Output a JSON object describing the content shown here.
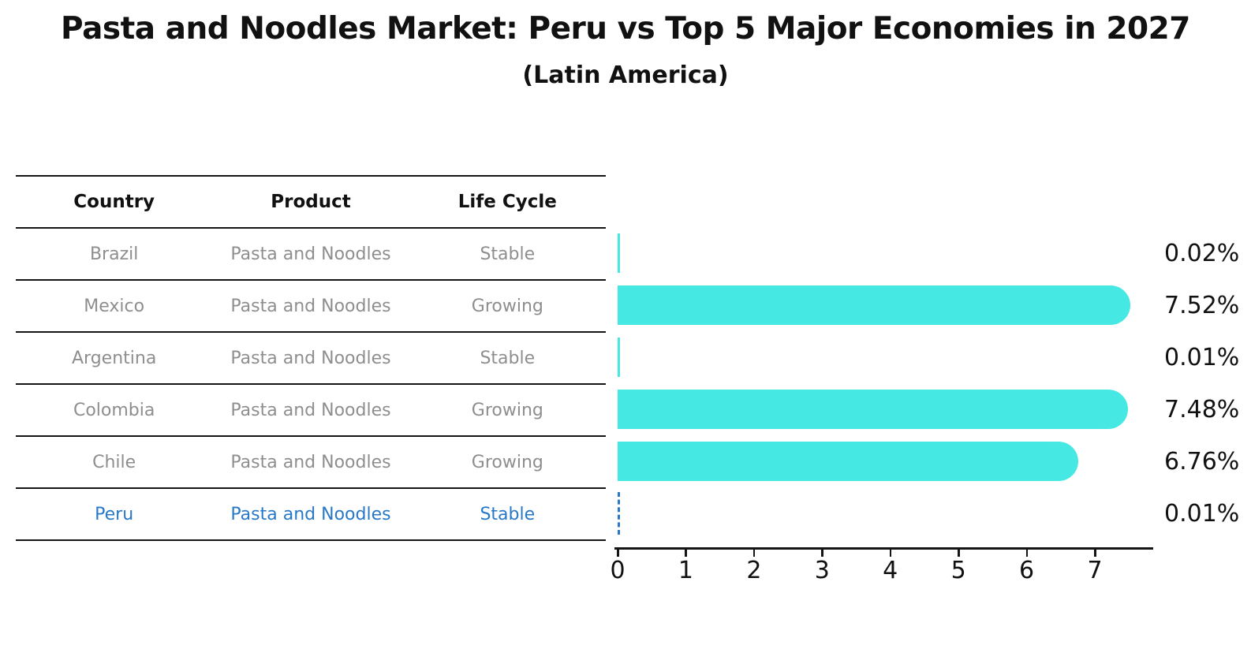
{
  "title": "Pasta and Noodles Market: Peru vs Top 5 Major Economies in 2027",
  "subtitle": "(Latin America)",
  "table": {
    "headers": [
      "Country",
      "Product",
      "Life Cycle"
    ],
    "rows": [
      {
        "country": "Brazil",
        "product": "Pasta and Noodles",
        "life_cycle": "Stable",
        "highlighted": false
      },
      {
        "country": "Mexico",
        "product": "Pasta and Noodles",
        "life_cycle": "Growing",
        "highlighted": false
      },
      {
        "country": "Argentina",
        "product": "Pasta and Noodles",
        "life_cycle": "Stable",
        "highlighted": false
      },
      {
        "country": "Colombia",
        "product": "Pasta and Noodles",
        "life_cycle": "Growing",
        "highlighted": false
      },
      {
        "country": "Chile",
        "product": "Pasta and Noodles",
        "life_cycle": "Growing",
        "highlighted": false
      },
      {
        "country": "Peru",
        "product": "Pasta and Noodles",
        "life_cycle": "Stable",
        "highlighted": true
      }
    ]
  },
  "chart_data": {
    "type": "bar",
    "orientation": "horizontal",
    "title": "Pasta and Noodles Market: Peru vs Top 5 Major Economies in 2027 (Latin America)",
    "categories": [
      "Brazil",
      "Mexico",
      "Argentina",
      "Colombia",
      "Chile",
      "Peru"
    ],
    "values": [
      0.02,
      7.52,
      0.01,
      7.48,
      6.76,
      0.01
    ],
    "value_labels": [
      "0.02%",
      "7.52%",
      "0.01%",
      "7.48%",
      "6.76%",
      "0.01%"
    ],
    "unit": "%",
    "x_ticks": [
      0,
      1,
      2,
      3,
      4,
      5,
      6,
      7
    ],
    "xlim": [
      0,
      7.856
    ],
    "grid": false,
    "legend": "none",
    "bar_color": "#45E8E2",
    "highlight_color": "#2878C8",
    "highlight_index": 5
  },
  "colors": {
    "background": "#ffffff",
    "table_text": "#8e8e8e",
    "header_text": "#111111",
    "line": "#141414"
  }
}
